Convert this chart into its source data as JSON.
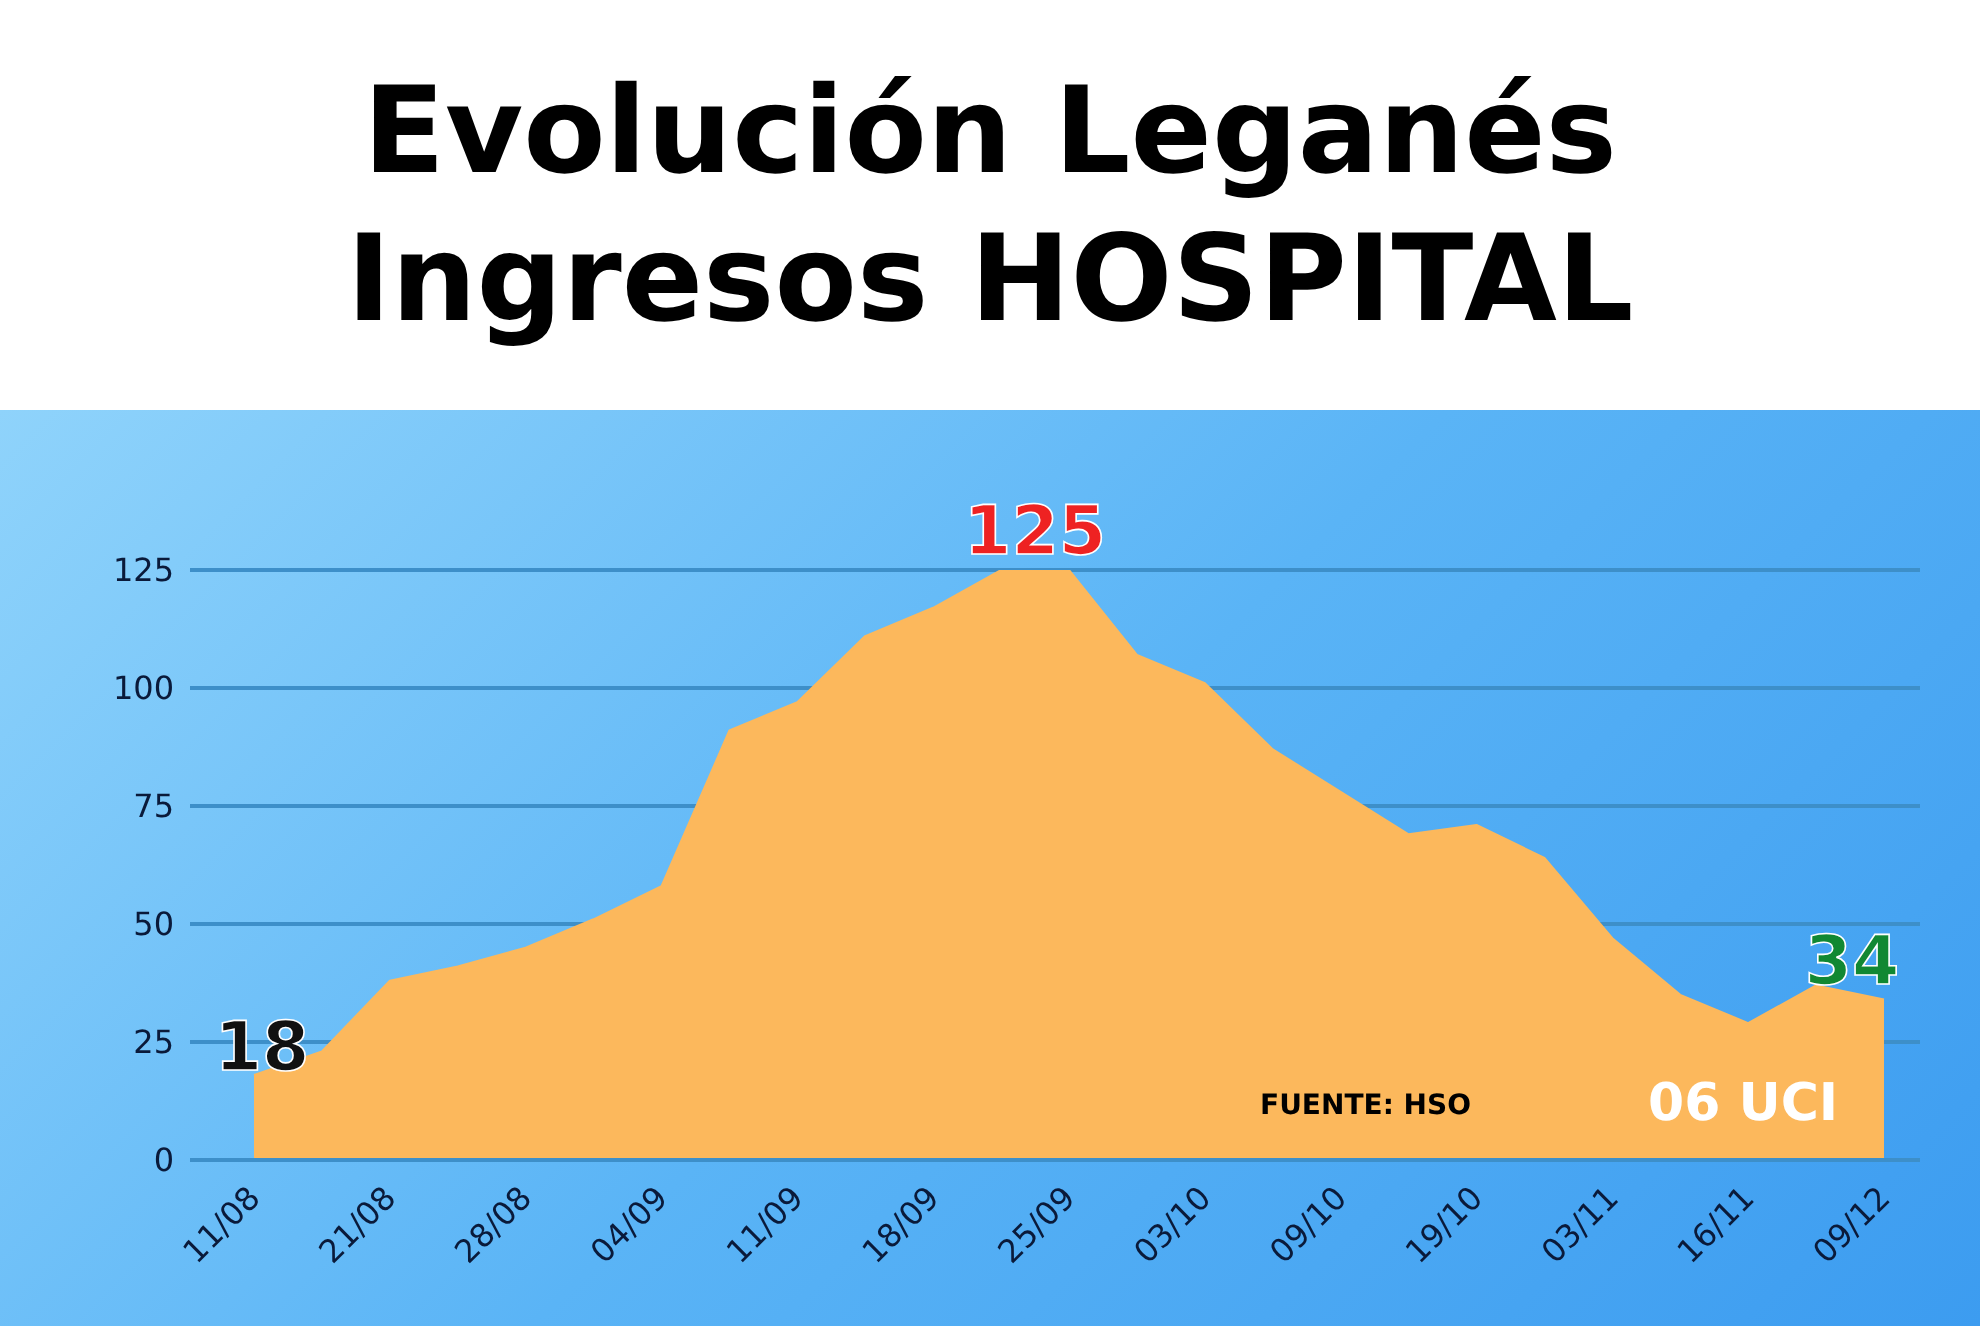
{
  "chart_data": {
    "type": "area",
    "title": "Evolución Leganés\nIngresos HOSPITAL",
    "categories": [
      "11/08",
      null,
      "21/08",
      null,
      "28/08",
      null,
      "04/09",
      null,
      "11/09",
      null,
      "18/09",
      null,
      "25/09",
      null,
      "03/10",
      null,
      "09/10",
      null,
      "19/10",
      null,
      "03/11",
      null,
      "16/11",
      null,
      "09/12"
    ],
    "series": [
      {
        "color": "#fcb85c",
        "values": [
          18,
          23,
          38,
          41,
          45,
          51,
          58,
          91,
          97,
          111,
          117,
          125,
          125,
          107,
          101,
          87,
          78,
          69,
          71,
          64,
          47,
          35,
          29,
          37,
          34
        ],
        "value_labels": [
          "18",
          null,
          null,
          null,
          null,
          null,
          null,
          null,
          null,
          null,
          null,
          "125",
          null,
          null,
          null,
          null,
          null,
          null,
          null,
          null,
          null,
          null,
          null,
          null,
          "34"
        ]
      }
    ],
    "ylim": [
      0,
      125
    ],
    "yticks": [
      0,
      25,
      50,
      75,
      100,
      125
    ],
    "grid": "y",
    "annotations": [
      "FUENTE: HSO",
      "06 UCI"
    ]
  }
}
